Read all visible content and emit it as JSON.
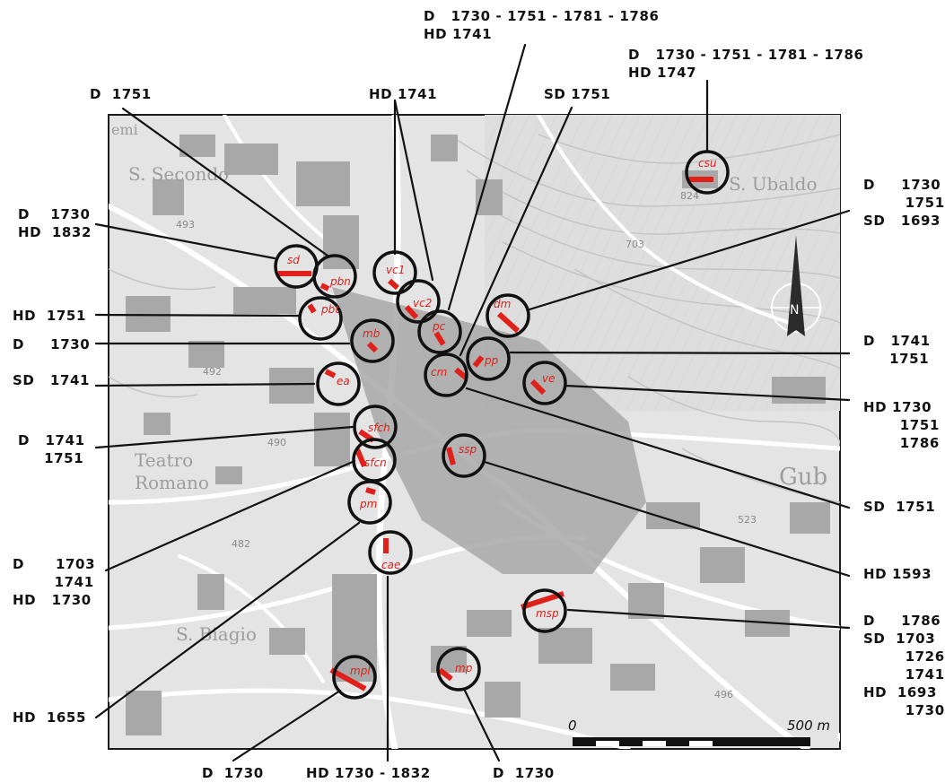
{
  "map": {
    "place_names": {
      "s_secondo": "S. Secondo",
      "s_ubaldo": "S. Ubaldo",
      "teatro": "Teatro",
      "romano": "Romano",
      "s_biagio": "S. Biagio",
      "gub": "Gub",
      "memi": "emi"
    },
    "elevations": [
      "492",
      "490",
      "482",
      "493",
      "824",
      "703",
      "523",
      "496"
    ],
    "scale": {
      "start": "0",
      "end": "500 m"
    }
  },
  "sites": [
    {
      "id": "csu",
      "label": "csu"
    },
    {
      "id": "sd",
      "label": "sd"
    },
    {
      "id": "pbn",
      "label": "pbn"
    },
    {
      "id": "pbt",
      "label": "pbt"
    },
    {
      "id": "vc1",
      "label": "vc1"
    },
    {
      "id": "vc2",
      "label": "vc2"
    },
    {
      "id": "pc",
      "label": "pc"
    },
    {
      "id": "dm",
      "label": "dm"
    },
    {
      "id": "mb",
      "label": "mb"
    },
    {
      "id": "pp",
      "label": "pp"
    },
    {
      "id": "cm",
      "label": "cm"
    },
    {
      "id": "ea",
      "label": "ea"
    },
    {
      "id": "ve",
      "label": "ve"
    },
    {
      "id": "sfch",
      "label": "sfch"
    },
    {
      "id": "sfcn",
      "label": "sfcn"
    },
    {
      "id": "ssp",
      "label": "ssp"
    },
    {
      "id": "pm",
      "label": "pm"
    },
    {
      "id": "cae",
      "label": "cae"
    },
    {
      "id": "msp",
      "label": "msp"
    },
    {
      "id": "mpl",
      "label": "mpl"
    },
    {
      "id": "mp",
      "label": "mp"
    }
  ],
  "labels": {
    "top_center": [
      "D   1730 - 1751 - 1781 - 1786",
      "HD 1741"
    ],
    "top_right": [
      "D   1730 - 1751 - 1781 - 1786",
      "HD 1747"
    ],
    "d1751_top": [
      "D  1751"
    ],
    "hd1741_top": [
      "HD 1741"
    ],
    "sd1751_top": [
      "SD 1751"
    ],
    "left_sd": [
      "D    1730",
      "HD  1832"
    ],
    "left_pbt": [
      "HD  1751"
    ],
    "left_mb": [
      "D     1730"
    ],
    "left_ea": [
      "SD   1741"
    ],
    "left_sfch": [
      "D   1741",
      "     1751"
    ],
    "left_sfcn": [
      "D      1703",
      "        1741",
      "HD   1730"
    ],
    "left_pm": [
      "HD  1655"
    ],
    "right_dm": [
      "D     1730",
      "        1751",
      "SD   1693"
    ],
    "right_pp": [
      "D   1741",
      "     1751"
    ],
    "right_ve": [
      "HD 1730",
      "       1751",
      "       1786"
    ],
    "right_cm": [
      "SD  1751"
    ],
    "right_ssp": [
      "HD 1593"
    ],
    "right_msp": [
      "D     1786",
      "SD  1703",
      "        1726",
      "        1741",
      "HD  1693",
      "        1730"
    ],
    "bottom_mpl": [
      "D  1730"
    ],
    "bottom_cae": [
      "HD 1730 - 1832"
    ],
    "bottom_mp": [
      "D  1730"
    ]
  },
  "colors": {
    "site_marker": "#e0211b",
    "circle": "#111111",
    "map_bg": "#e3e3e3",
    "buildings": "#a9a9a9",
    "roads": "#ffffff",
    "contours": "#c4c4c4"
  },
  "icons": {
    "north_arrow": "north-arrow-icon"
  }
}
